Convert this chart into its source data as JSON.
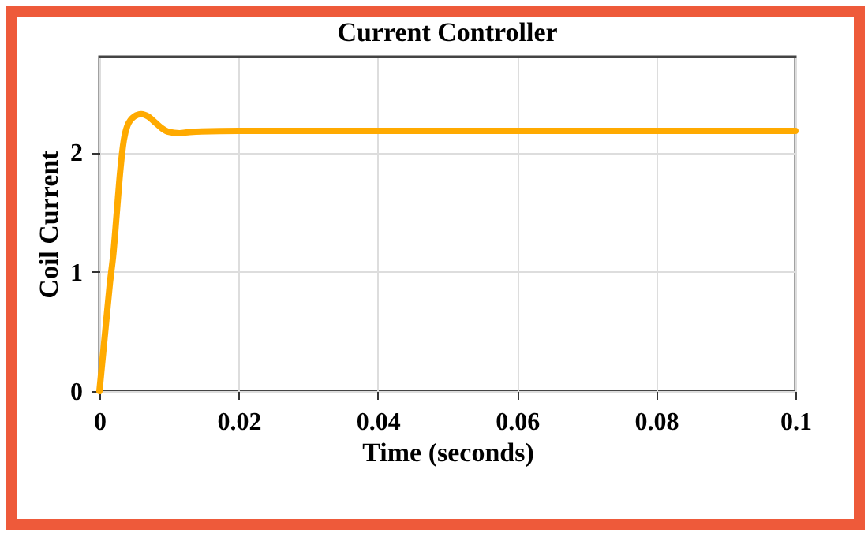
{
  "chart_data": {
    "type": "line",
    "title": "Current Controller",
    "xlabel": "Time (seconds)",
    "ylabel": "Coil Current",
    "x": [
      0,
      0.0005,
      0.001,
      0.0015,
      0.002,
      0.0025,
      0.003,
      0.0035,
      0.004,
      0.005,
      0.006,
      0.007,
      0.008,
      0.009,
      0.01,
      0.0115,
      0.013,
      0.02,
      0.05,
      0.1
    ],
    "series": [
      {
        "color": "#ffaa00",
        "values": [
          0,
          0.3,
          0.6,
          0.9,
          1.15,
          1.5,
          1.85,
          2.1,
          2.22,
          2.3,
          2.32,
          2.3,
          2.25,
          2.2,
          2.17,
          2.16,
          2.17,
          2.18,
          2.18,
          2.18
        ]
      }
    ],
    "xlim": [
      0,
      0.1
    ],
    "xticks": [
      0,
      0.02,
      0.04,
      0.06,
      0.08,
      0.1
    ],
    "ylim": [
      0,
      2.8
    ],
    "yticks": [
      0,
      1,
      2
    ],
    "grid": true,
    "legend": false,
    "marker": "none",
    "line_style": "solid"
  }
}
